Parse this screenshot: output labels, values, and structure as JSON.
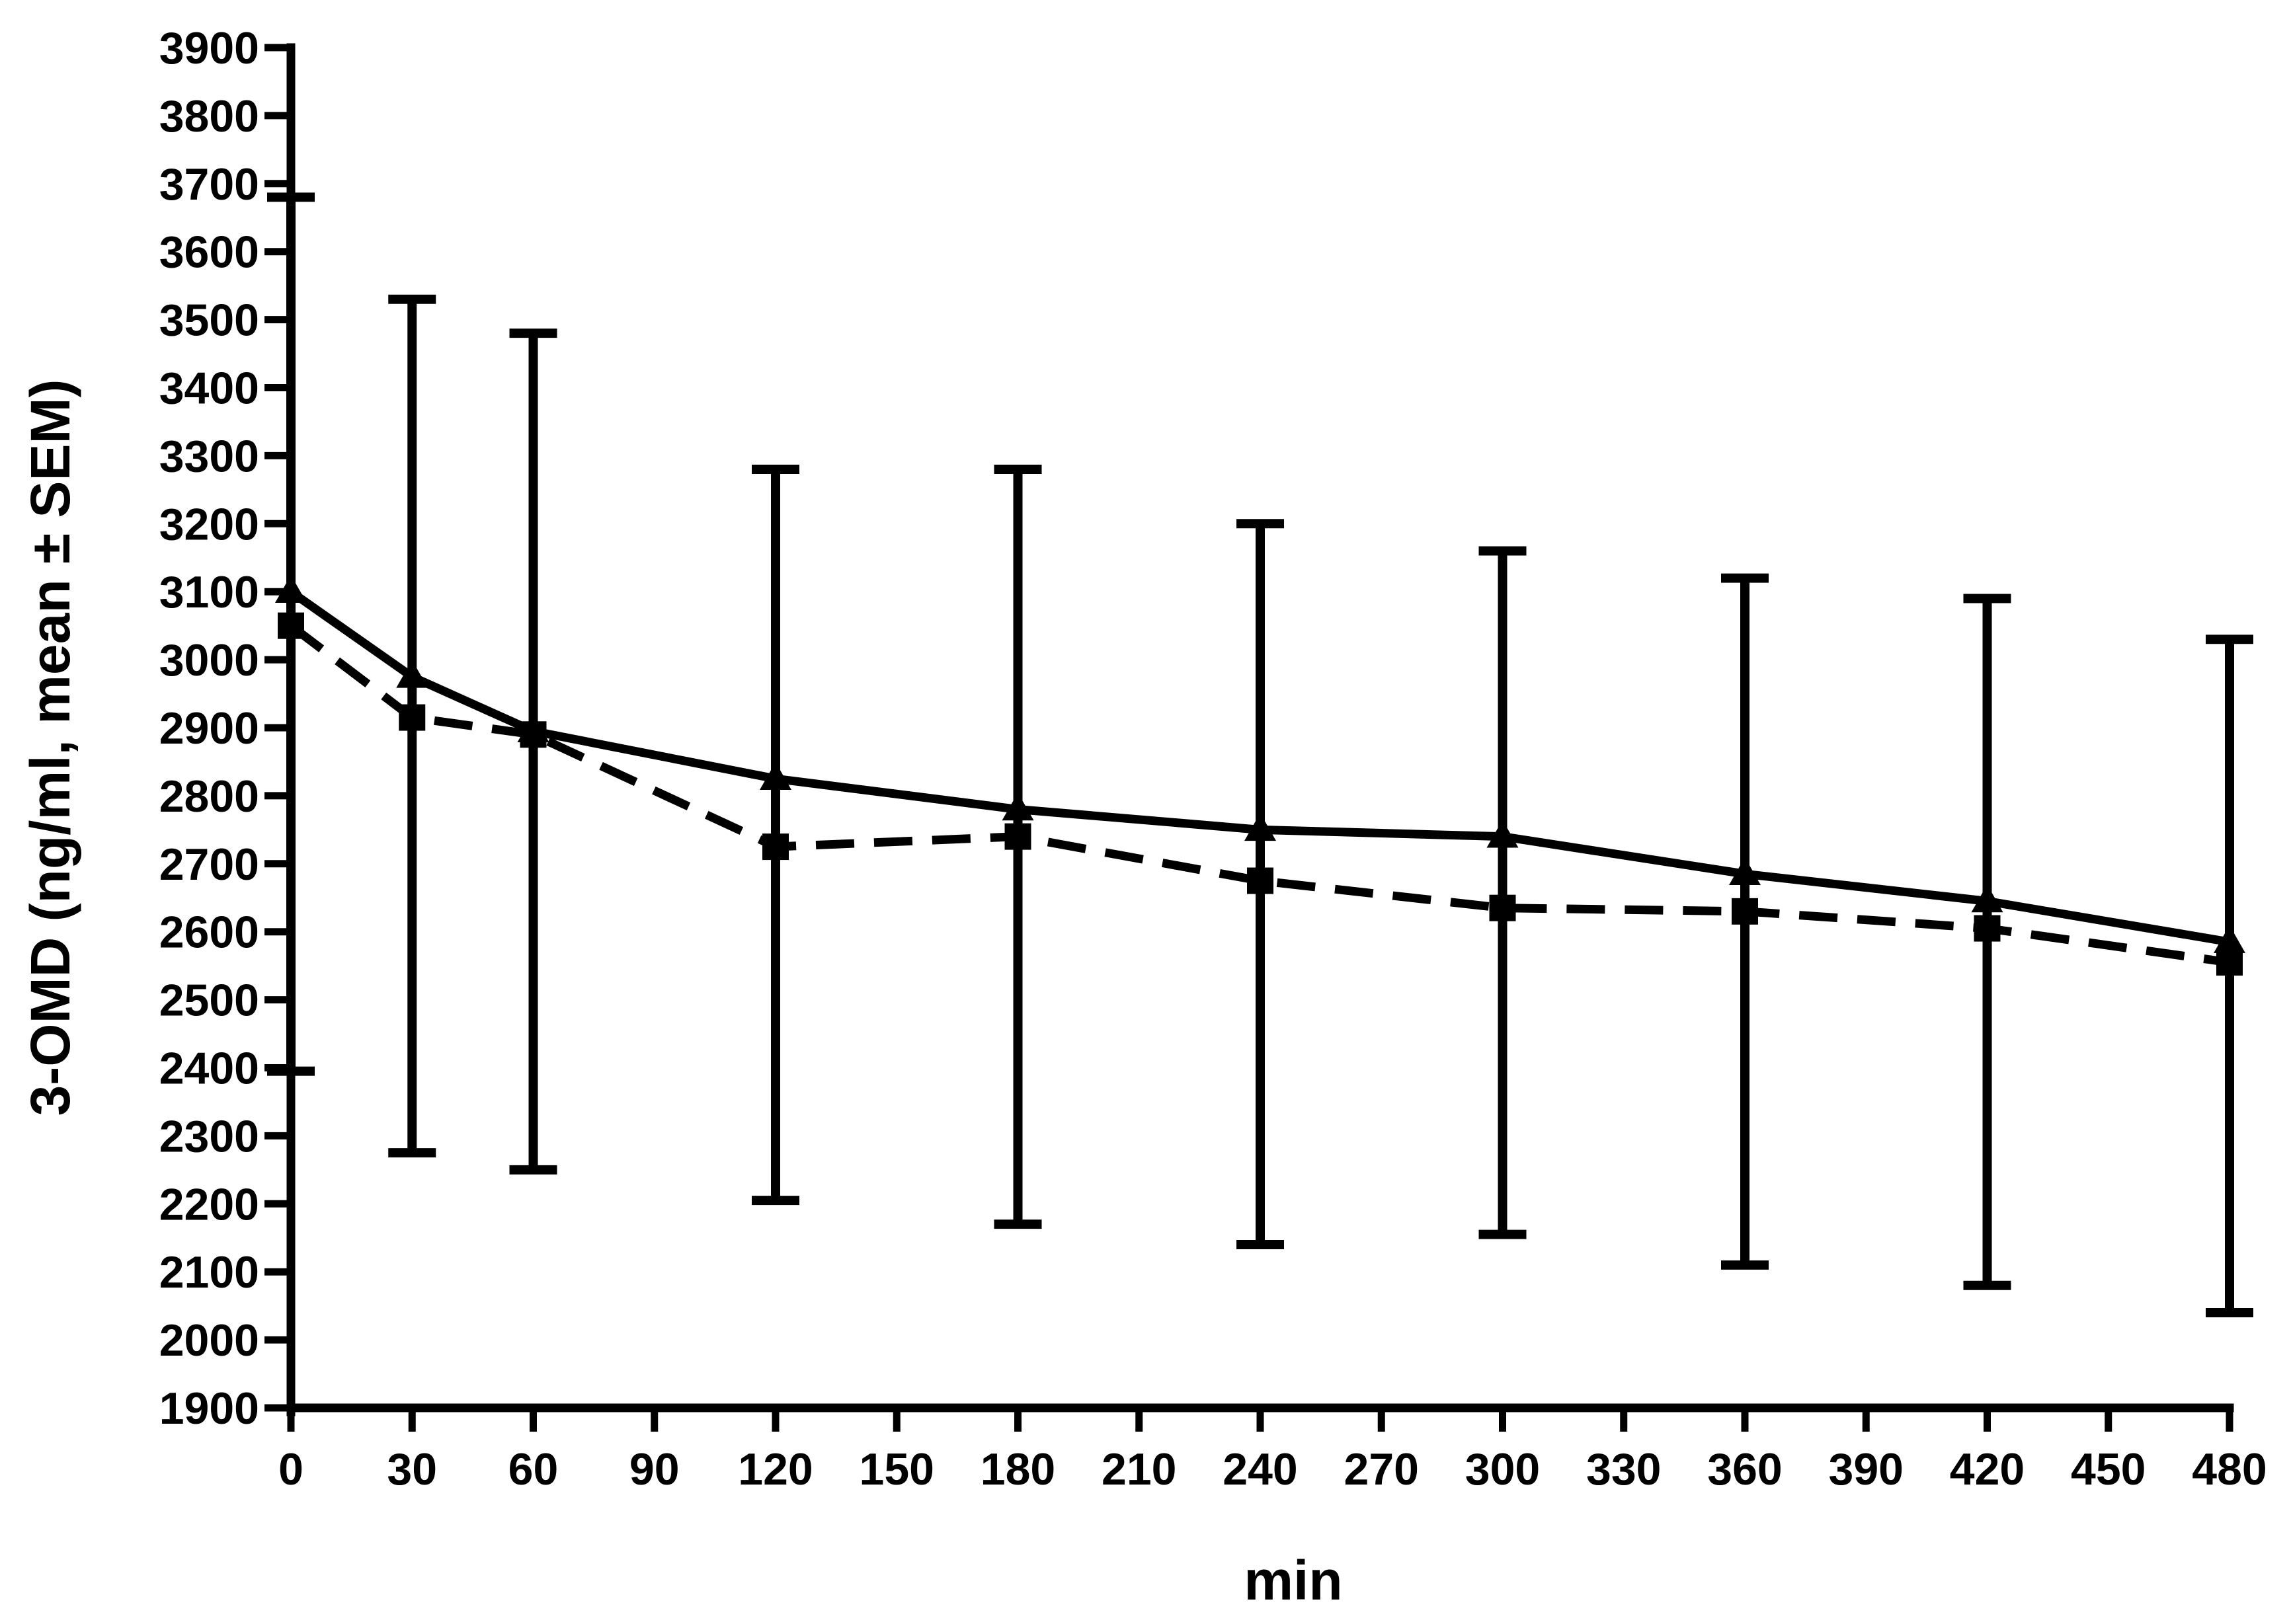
{
  "chart_data": {
    "type": "line",
    "xlabel": "min",
    "ylabel": "3-OMD (ng/ml, mean ± SEM)",
    "xlim": [
      0,
      480
    ],
    "ylim": [
      1900,
      3900
    ],
    "xticks": [
      0,
      30,
      60,
      90,
      120,
      150,
      180,
      210,
      240,
      270,
      300,
      330,
      360,
      390,
      420,
      450,
      480
    ],
    "yticks": [
      1900,
      2000,
      2100,
      2200,
      2300,
      2400,
      2500,
      2600,
      2700,
      2800,
      2900,
      3000,
      3100,
      3200,
      3300,
      3400,
      3500,
      3600,
      3700,
      3800,
      3900
    ],
    "grid": false,
    "legend": "none",
    "x": [
      0,
      30,
      60,
      120,
      180,
      240,
      300,
      360,
      420,
      480
    ],
    "series": [
      {
        "line": "solid",
        "marker": "triangle",
        "color": "#000000",
        "values": [
          3100,
          2975,
          2895,
          2825,
          2780,
          2750,
          2740,
          2685,
          2645,
          2585
        ]
      },
      {
        "line": "dashed",
        "marker": "square",
        "color": "#000000",
        "values": [
          3050,
          2915,
          2890,
          2725,
          2740,
          2675,
          2635,
          2630,
          2605,
          2555
        ]
      }
    ],
    "error_bars": {
      "upper": [
        3680,
        3530,
        3480,
        3280,
        3280,
        3200,
        3160,
        3120,
        3090,
        3030
      ],
      "lower": [
        2395,
        2275,
        2250,
        2205,
        2170,
        2140,
        2155,
        2110,
        2080,
        2040
      ]
    }
  }
}
